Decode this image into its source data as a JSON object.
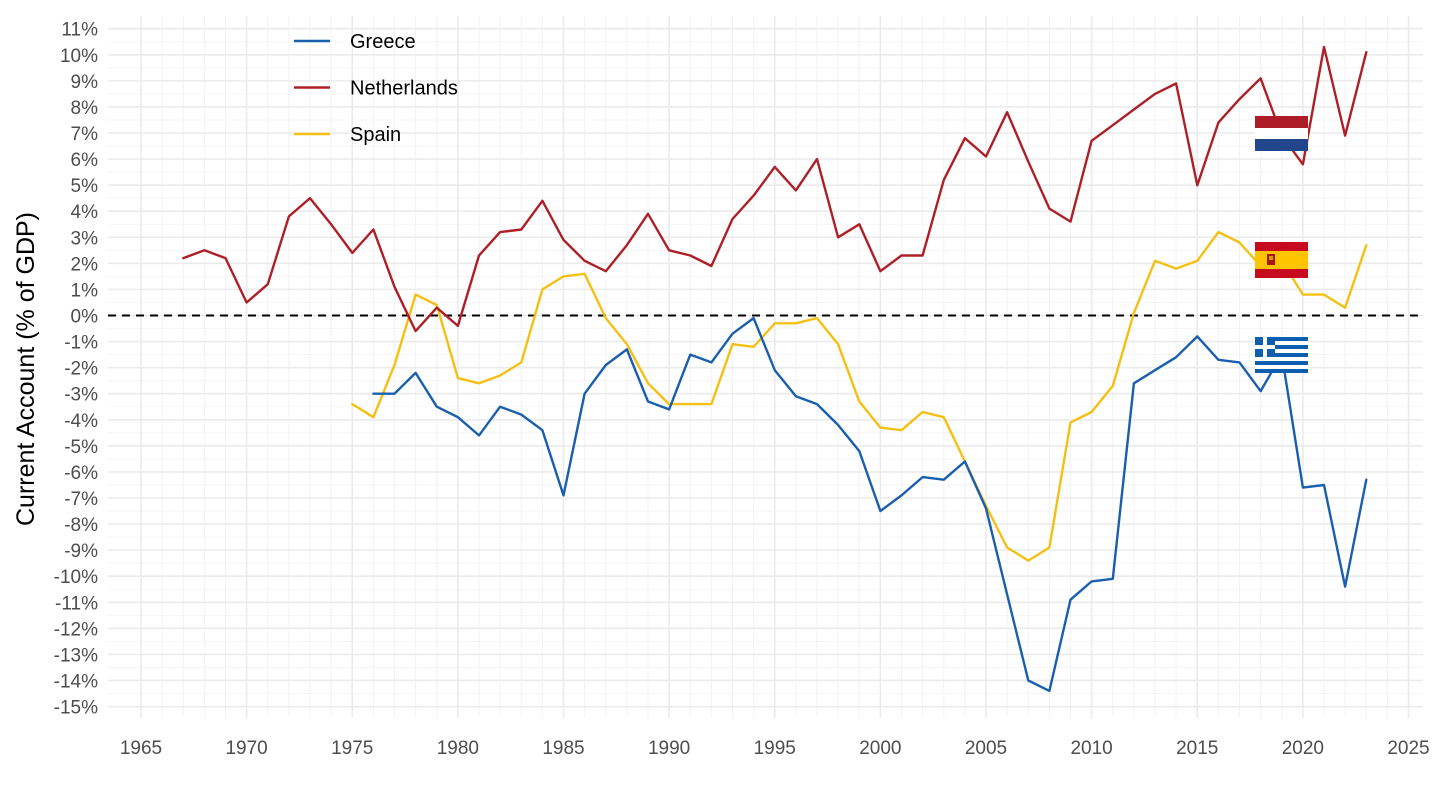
{
  "chart_data": {
    "type": "line",
    "title": "",
    "xlabel": "",
    "ylabel": "Current Account (% of GDP)",
    "xlim": [
      1965,
      2025
    ],
    "ylim": [
      -15,
      11
    ],
    "x_ticks": [
      1965,
      1970,
      1975,
      1980,
      1985,
      1990,
      1995,
      2000,
      2005,
      2010,
      2015,
      2020,
      2025
    ],
    "y_ticks": [
      "11%",
      "10%",
      "9%",
      "8%",
      "7%",
      "6%",
      "5%",
      "4%",
      "3%",
      "2%",
      "1%",
      "0%",
      "-1%",
      "-2%",
      "-3%",
      "-4%",
      "-5%",
      "-6%",
      "-7%",
      "-8%",
      "-9%",
      "-10%",
      "-11%",
      "-12%",
      "-13%",
      "-14%",
      "-15%"
    ],
    "grid": true,
    "reference_line": {
      "y": 0,
      "style": "dashed",
      "color": "#000000"
    },
    "legend_position": "top-left",
    "series": [
      {
        "name": "Greece",
        "color": "#1a5fad",
        "flag_icon": "greece-flag-icon",
        "x": [
          1976,
          1977,
          1978,
          1979,
          1980,
          1981,
          1982,
          1983,
          1984,
          1985,
          1986,
          1987,
          1988,
          1989,
          1990,
          1991,
          1992,
          1993,
          1994,
          1995,
          1996,
          1997,
          1998,
          1999,
          2000,
          2001,
          2002,
          2003,
          2004,
          2005,
          2006,
          2007,
          2008,
          2009,
          2010,
          2011,
          2012,
          2013,
          2014,
          2015,
          2016,
          2017,
          2018,
          2019,
          2020,
          2021,
          2022,
          2023
        ],
        "values": [
          -3.0,
          -3.0,
          -2.2,
          -3.5,
          -3.9,
          -4.6,
          -3.5,
          -3.8,
          -4.4,
          -6.9,
          -3.0,
          -1.9,
          -1.3,
          -3.3,
          -3.6,
          -1.5,
          -1.8,
          -0.7,
          -0.1,
          -2.1,
          -3.1,
          -3.4,
          -4.2,
          -5.2,
          -7.5,
          -6.9,
          -6.2,
          -6.3,
          -5.6,
          -7.4,
          -10.7,
          -14.0,
          -14.4,
          -10.9,
          -10.2,
          -10.1,
          -2.6,
          -2.1,
          -1.6,
          -0.8,
          -1.7,
          -1.8,
          -2.9,
          -1.5,
          -6.6,
          -6.5,
          -10.4,
          -6.3
        ]
      },
      {
        "name": "Netherlands",
        "color": "#ae2028",
        "flag_icon": "netherlands-flag-icon",
        "x": [
          1967,
          1968,
          1969,
          1970,
          1971,
          1972,
          1973,
          1974,
          1975,
          1976,
          1977,
          1978,
          1979,
          1980,
          1981,
          1982,
          1983,
          1984,
          1985,
          1986,
          1987,
          1988,
          1989,
          1990,
          1991,
          1992,
          1993,
          1994,
          1995,
          1996,
          1997,
          1998,
          1999,
          2000,
          2001,
          2002,
          2003,
          2004,
          2005,
          2006,
          2007,
          2008,
          2009,
          2010,
          2011,
          2012,
          2013,
          2014,
          2015,
          2016,
          2017,
          2018,
          2019,
          2020,
          2021,
          2022,
          2023
        ],
        "values": [
          2.2,
          2.5,
          2.2,
          0.5,
          1.2,
          3.8,
          4.5,
          3.5,
          2.4,
          3.3,
          1.1,
          -0.6,
          0.3,
          -0.4,
          2.3,
          3.2,
          3.3,
          4.4,
          2.9,
          2.1,
          1.7,
          2.7,
          3.9,
          2.5,
          2.3,
          1.9,
          3.7,
          4.6,
          5.7,
          4.8,
          6.0,
          3.0,
          3.5,
          1.7,
          2.3,
          2.3,
          5.2,
          6.8,
          6.1,
          7.8,
          5.9,
          4.1,
          3.6,
          6.7,
          7.3,
          7.9,
          8.5,
          8.9,
          5.0,
          7.4,
          8.3,
          9.1,
          6.9,
          5.8,
          10.3,
          6.9,
          10.1
        ]
      },
      {
        "name": "Spain",
        "color": "#f5c014",
        "flag_icon": "spain-flag-icon",
        "x": [
          1975,
          1976,
          1977,
          1978,
          1979,
          1980,
          1981,
          1982,
          1983,
          1984,
          1985,
          1986,
          1987,
          1988,
          1989,
          1990,
          1991,
          1992,
          1993,
          1994,
          1995,
          1996,
          1997,
          1998,
          1999,
          2000,
          2001,
          2002,
          2003,
          2004,
          2005,
          2006,
          2007,
          2008,
          2009,
          2010,
          2011,
          2012,
          2013,
          2014,
          2015,
          2016,
          2017,
          2018,
          2019,
          2020,
          2021,
          2022,
          2023
        ],
        "values": [
          -3.4,
          -3.9,
          -1.9,
          0.8,
          0.4,
          -2.4,
          -2.6,
          -2.3,
          -1.8,
          1.0,
          1.5,
          1.6,
          -0.1,
          -1.1,
          -2.6,
          -3.4,
          -3.4,
          -3.4,
          -1.1,
          -1.2,
          -0.3,
          -0.3,
          -0.1,
          -1.1,
          -3.3,
          -4.3,
          -4.4,
          -3.7,
          -3.9,
          -5.6,
          -7.3,
          -8.9,
          -9.4,
          -8.9,
          -4.1,
          -3.7,
          -2.7,
          0.1,
          2.1,
          1.8,
          2.1,
          3.2,
          2.8,
          1.9,
          2.1,
          0.8,
          0.8,
          0.3,
          2.7
        ]
      }
    ]
  }
}
